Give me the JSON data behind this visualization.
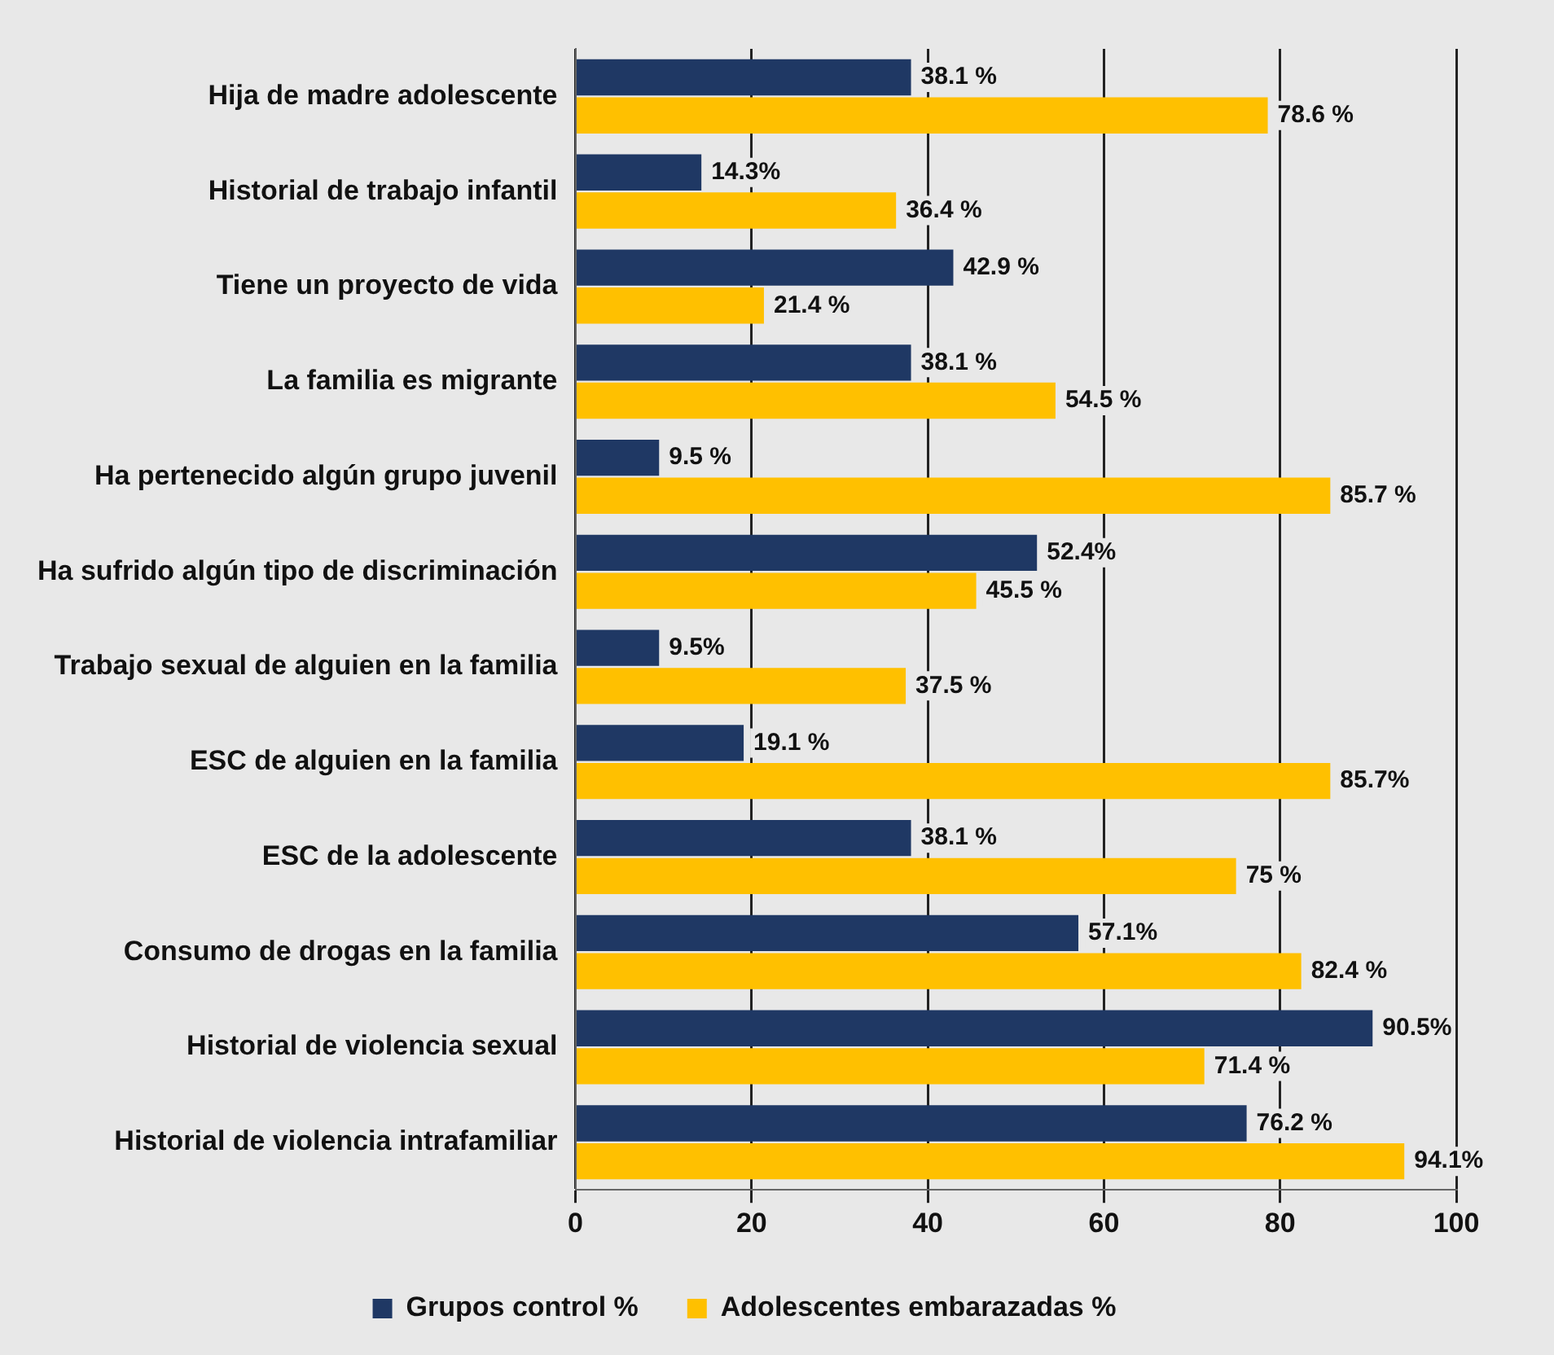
{
  "chart_data": {
    "type": "bar",
    "orientation": "horizontal",
    "categories": [
      "Hija de madre adolescente",
      "Historial de trabajo infantil",
      "Tiene un proyecto de vida",
      "La familia es migrante",
      "Ha pertenecido algún grupo juvenil",
      "Ha sufrido algún tipo de discriminación",
      "Trabajo sexual de alguien en la familia",
      "ESC de alguien en la familia",
      "ESC de la adolescente",
      "Consumo de drogas en la familia",
      "Historial de violencia sexual",
      "Historial de violencia intrafamiliar"
    ],
    "series": [
      {
        "name": "Grupos control %",
        "color": "#1f3864",
        "values": [
          38.1,
          14.3,
          42.9,
          38.1,
          9.5,
          52.4,
          9.5,
          19.1,
          38.1,
          57.1,
          90.5,
          76.2
        ],
        "value_labels": [
          "38.1 %",
          "14.3%",
          "42.9 %",
          "38.1 %",
          "9.5 %",
          "52.4%",
          "9.5%",
          "19.1 %",
          "38.1 %",
          "57.1%",
          "90.5%",
          "76.2 %"
        ]
      },
      {
        "name": "Adolescentes embarazadas %",
        "color": "#ffc000",
        "values": [
          78.6,
          36.4,
          21.4,
          54.5,
          85.7,
          45.5,
          37.5,
          85.7,
          75,
          82.4,
          71.4,
          94.1
        ],
        "value_labels": [
          "78.6 %",
          "36.4 %",
          "21.4 %",
          "54.5 %",
          "85.7 %",
          "45.5 %",
          "37.5 %",
          "85.7%",
          "75 %",
          "82.4 %",
          "71.4 %",
          "94.1%"
        ]
      }
    ],
    "xlim": [
      0,
      100
    ],
    "xticks": [
      0,
      20,
      40,
      60,
      80,
      100
    ],
    "grid": "x",
    "legend": "bottom"
  }
}
